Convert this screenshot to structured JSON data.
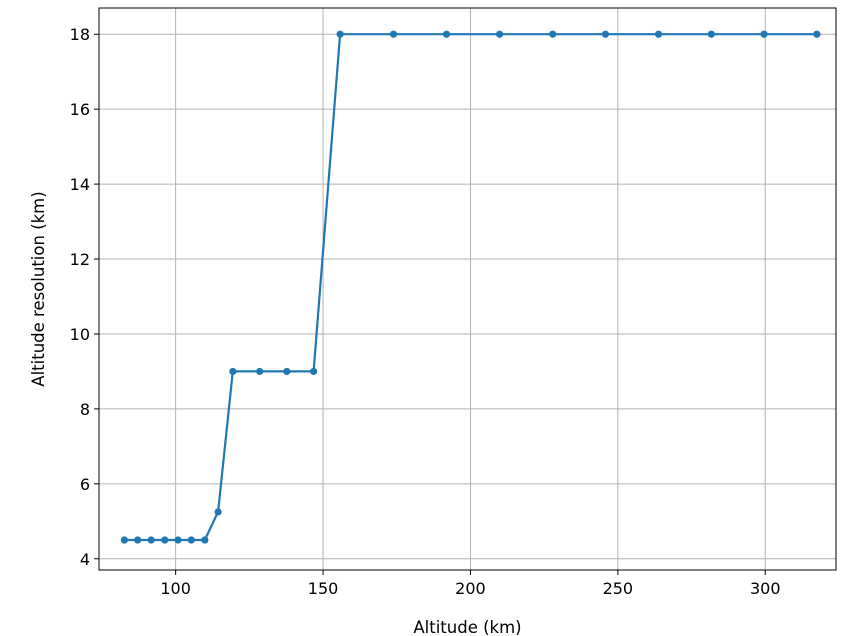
{
  "chart_data": {
    "type": "line",
    "title": "",
    "xlabel": "Altitude (km)",
    "ylabel": "Altitude resolution (km)",
    "xlim": [
      74,
      324
    ],
    "ylim": [
      3.7,
      18.7
    ],
    "xticks": [
      100,
      150,
      200,
      250,
      300
    ],
    "yticks": [
      4,
      6,
      8,
      10,
      12,
      14,
      16,
      18
    ],
    "grid": true,
    "legend": "none",
    "colors": {
      "line": "#1f77b4",
      "grid": "#b0b0b0",
      "axes": "#000000"
    },
    "series": [
      {
        "marker": "circle",
        "x": [
          82.6,
          87.1,
          91.7,
          96.3,
          100.8,
          105.3,
          109.9,
          114.4,
          119.4,
          128.5,
          137.7,
          146.8,
          155.8,
          173.9,
          191.9,
          209.9,
          227.9,
          245.8,
          263.8,
          281.7,
          299.6,
          317.5
        ],
        "y": [
          4.5,
          4.5,
          4.5,
          4.5,
          4.5,
          4.5,
          4.5,
          5.25,
          9.0,
          9.0,
          9.0,
          9.0,
          18.0,
          18.0,
          18.0,
          18.0,
          18.0,
          18.0,
          18.0,
          18.0,
          18.0,
          18.0
        ]
      }
    ]
  }
}
